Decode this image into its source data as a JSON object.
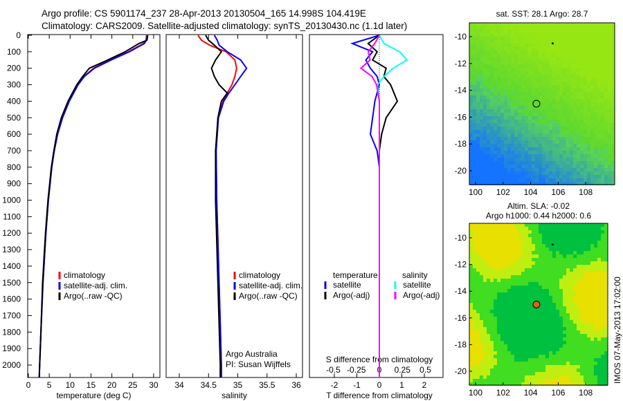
{
  "title_line1": "Argo profile: CS 5901174_237 28-Apr-2013 20130504_165 14.998S 104.419E",
  "title_line2": "Climatology: CARS2009. Satellite-adjusted climatology: synTS_20130430.nc (1.1d later)",
  "footer_stamp": "IMOS 07-May-2013 17:02:00",
  "colors": {
    "climatology": "#ff0000",
    "satellite_adj": "#0000ff",
    "argo": "#000000",
    "s_satellite": "#00ffff",
    "s_argo": "#ff00ff"
  },
  "chart_data": [
    {
      "type": "line",
      "xlabel": "temperature (deg C)",
      "ylabel": "",
      "xlim": [
        -1,
        31
      ],
      "ylim": [
        2075,
        0
      ],
      "xticks": [
        "0",
        "5",
        "10",
        "15",
        "20",
        "25",
        "30"
      ],
      "yticks": [
        "0",
        "100",
        "200",
        "300",
        "400",
        "500",
        "600",
        "700",
        "800",
        "900",
        "1000",
        "1100",
        "1200",
        "1300",
        "1400",
        "1500",
        "1600",
        "1700",
        "1800",
        "1900",
        "2000"
      ],
      "legend": [
        "climatology",
        "satellite-adj. clim.",
        "Argo(..raw -QC)"
      ],
      "legend_placement": "lower-center",
      "depth": [
        0,
        30,
        50,
        100,
        150,
        200,
        250,
        300,
        400,
        500,
        600,
        700,
        800,
        1000,
        1200,
        1500,
        1800,
        2000,
        2075
      ],
      "series": [
        {
          "name": "climatology",
          "values": [
            28.3,
            28.2,
            27.6,
            24.0,
            19.5,
            15.6,
            13.3,
            11.8,
            9.7,
            8.1,
            7.0,
            6.2,
            5.6,
            4.8,
            4.2,
            3.5,
            3.0,
            2.7,
            2.6
          ]
        },
        {
          "name": "satellite-adj. clim.",
          "values": [
            28.5,
            28.3,
            27.8,
            24.2,
            19.8,
            15.8,
            13.4,
            11.9,
            9.8,
            8.2,
            7.0,
            6.2,
            5.6,
            4.8,
            4.2,
            3.5,
            3.0,
            2.7,
            2.6
          ]
        },
        {
          "name": "Argo(..raw -QC)",
          "values": [
            28.6,
            28.4,
            26.5,
            23.2,
            19.0,
            14.6,
            13.0,
            11.6,
            9.5,
            7.9,
            6.8,
            6.1,
            5.5,
            4.7,
            4.1,
            3.4,
            3.0,
            2.7,
            2.6
          ]
        }
      ]
    },
    {
      "type": "line",
      "xlabel": "salinity",
      "xlim": [
        33.8,
        36.1
      ],
      "ylim": [
        2075,
        0
      ],
      "xticks": [
        "34",
        "34.5",
        "35",
        "35.5",
        "36"
      ],
      "legend": [
        "climatology",
        "satellite-adj. clim.",
        "Argo(..raw -QC)"
      ],
      "annotation": [
        "Argo Australia",
        "PI: Susan Wijffels"
      ],
      "depth": [
        0,
        30,
        60,
        100,
        150,
        200,
        250,
        300,
        350,
        400,
        500,
        700,
        1000,
        1500,
        2000,
        2075
      ],
      "series": [
        {
          "name": "climatology",
          "values": [
            34.32,
            34.38,
            34.52,
            34.8,
            34.95,
            34.98,
            34.95,
            34.9,
            34.82,
            34.75,
            34.66,
            34.63,
            34.64,
            34.68,
            34.72,
            34.72
          ]
        },
        {
          "name": "satellite-adj. clim.",
          "values": [
            34.6,
            34.65,
            34.68,
            34.82,
            35.05,
            35.15,
            35.05,
            34.95,
            34.85,
            34.76,
            34.67,
            34.63,
            34.64,
            34.68,
            34.72,
            34.72
          ]
        },
        {
          "name": "Argo(..raw -QC)",
          "values": [
            34.45,
            34.5,
            34.6,
            34.72,
            34.62,
            34.55,
            34.6,
            34.68,
            34.82,
            34.72,
            34.66,
            34.62,
            34.62,
            34.66,
            34.7,
            34.7
          ]
        }
      ]
    },
    {
      "type": "line",
      "xlabel": "T difference from climatology",
      "x2label": "S difference from climatology",
      "xlim": [
        -2.9,
        2.9
      ],
      "ylim": [
        2075,
        0
      ],
      "xticks": [
        "-2",
        "-1",
        "0",
        "1",
        "2"
      ],
      "x2ticks": [
        "-0.5",
        "-0.25",
        "0",
        "0.25",
        "0.5"
      ],
      "legend_temperature_title": "temperature",
      "legend_salinity_title": "salinity",
      "legend": [
        "satellite",
        "Argo(-adj)",
        "satellite",
        "Argo(-adj)"
      ],
      "depth": [
        0,
        50,
        100,
        150,
        200,
        250,
        300,
        400,
        500,
        600,
        700,
        800,
        1000,
        1500,
        2000,
        2075
      ],
      "series": [
        {
          "name": "T satellite",
          "values": [
            0,
            -1.2,
            -0.3,
            -0.6,
            -0.4,
            -0.1,
            0,
            -0.2,
            -0.3,
            -0.4,
            -0.1,
            0,
            0,
            0,
            0,
            0
          ]
        },
        {
          "name": "T Argo(-adj)",
          "values": [
            0,
            -0.5,
            -0.1,
            -0.3,
            0.3,
            0.2,
            0.5,
            0.8,
            0.3,
            0.1,
            0,
            0,
            0,
            0,
            0,
            0
          ]
        },
        {
          "name": "S satellite",
          "values": [
            0,
            0.05,
            0.22,
            0.3,
            0.15,
            0.05,
            -0.02,
            0,
            0,
            0,
            0,
            0,
            0,
            0,
            0,
            0
          ]
        },
        {
          "name": "S Argo(-adj)",
          "values": [
            0,
            -0.05,
            -0.12,
            -0.1,
            -0.2,
            -0.08,
            -0.03,
            0,
            0,
            0,
            0,
            0,
            0,
            0,
            0,
            0
          ]
        }
      ]
    },
    {
      "type": "heatmap",
      "title": "sat. SST: 28.1  Argo: 28.7",
      "xticks": [
        "100",
        "102",
        "104",
        "106",
        "108"
      ],
      "yticks": [
        "-10",
        "-12",
        "-14",
        "-16",
        "-18",
        "-20"
      ],
      "profile_location": [
        104.419,
        -14.998
      ]
    },
    {
      "type": "heatmap",
      "title": "Altim. SLA: -0.02",
      "subtitle": "Argo h1000: 0.44 h2000: 0.6",
      "xticks": [
        "100",
        "102",
        "104",
        "106",
        "108"
      ],
      "yticks": [
        "-10",
        "-12",
        "-14",
        "-16",
        "-18",
        "-20"
      ],
      "profile_location": [
        104.419,
        -14.998
      ]
    }
  ]
}
